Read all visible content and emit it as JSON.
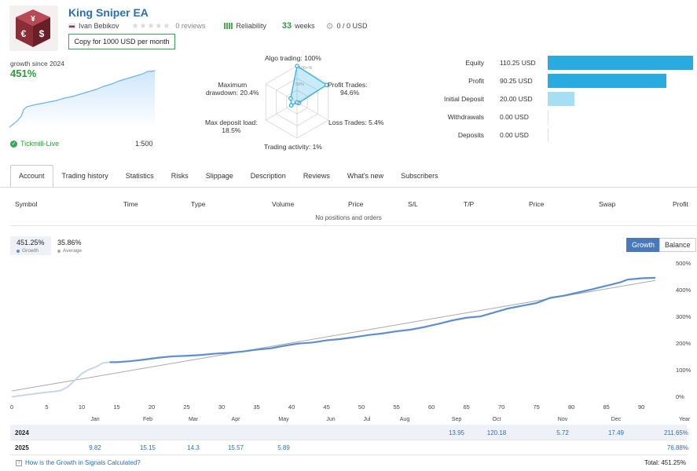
{
  "header": {
    "title": "King Sniper EA",
    "author": "Ivan Bebikov",
    "reviews": "0 reviews",
    "reliability_label": "Reliability",
    "weeks_num": "33",
    "weeks_label": "weeks",
    "copiers": "0 / 0 USD",
    "copy_button": "Copy for 1000 USD per month"
  },
  "growth_widget": {
    "label": "growth since 2024",
    "value": "451%",
    "broker": "Tickmill-Live",
    "leverage": "1:500"
  },
  "radar": {
    "algo": "Algo trading: 100%",
    "profit_trades_1": "Profit Trades:",
    "profit_trades_2": "94.6%",
    "loss_trades": "Loss Trades: 5.4%",
    "activity": "Trading activity: 1%",
    "maxdep_1": "Max deposit load:",
    "maxdep_2": "18.5%",
    "drawdown_1": "Maximum",
    "drawdown_2": "drawdown: 20.4%",
    "ring_100": "100+%",
    "ring_50": "50%",
    "ring_0": "0%",
    "values": {
      "algo": 100,
      "profit": 94.6,
      "loss": 5.4,
      "activity": 1,
      "maxdep": 18.5,
      "drawdown": 20.4
    }
  },
  "balance": {
    "rows": [
      {
        "label": "Equity",
        "value": "110.25 USD",
        "amount": 110.25,
        "color": "#29abe2"
      },
      {
        "label": "Profit",
        "value": "90.25 USD",
        "amount": 90.25,
        "color": "#29abe2"
      },
      {
        "label": "Initial Deposit",
        "value": "20.00 USD",
        "amount": 20.0,
        "color": "#a6def3"
      },
      {
        "label": "Withdrawals",
        "value": "0.00 USD",
        "amount": 0,
        "color": "#a6def3"
      },
      {
        "label": "Deposits",
        "value": "0.00 USD",
        "amount": 0,
        "color": "#a6def3"
      }
    ]
  },
  "tabs": [
    "Account",
    "Trading history",
    "Statistics",
    "Risks",
    "Slippage",
    "Description",
    "Reviews",
    "What's new",
    "Subscribers"
  ],
  "positions": {
    "headers": [
      "Symbol",
      "Time",
      "Type",
      "Volume",
      "Price",
      "S/L",
      "T/P",
      "Price",
      "Swap",
      "Profit"
    ],
    "empty": "No positions and orders"
  },
  "summary": {
    "growth_value": "451.25%",
    "growth_label": "Growth",
    "average_value": "35.86%",
    "average_label": "Average"
  },
  "toggle": {
    "growth": "Growth",
    "balance": "Balance"
  },
  "chart_data": {
    "type": "line",
    "x_ticks": [
      "0",
      "5",
      "10",
      "15",
      "20",
      "25",
      "30",
      "35",
      "40",
      "45",
      "50",
      "55",
      "60",
      "65",
      "70",
      "75",
      "80",
      "85",
      "90"
    ],
    "y_ticks": [
      "0%",
      "100%",
      "200%",
      "300%",
      "400%",
      "500%"
    ],
    "month_labels": [
      "Jan",
      "Feb",
      "Mar",
      "Apr",
      "May",
      "Jun",
      "Jul",
      "Aug",
      "Sep",
      "Oct",
      "Nov",
      "Dec"
    ],
    "year_label": "Year",
    "xlim": [
      0,
      92
    ],
    "ylim": [
      -30,
      530
    ],
    "growth_series": {
      "name": "Growth",
      "color": "#5b8fd1",
      "points": [
        [
          0,
          -2
        ],
        [
          2,
          5
        ],
        [
          4,
          12
        ],
        [
          6,
          18
        ],
        [
          7,
          22
        ],
        [
          8,
          35
        ],
        [
          9,
          60
        ],
        [
          10,
          85
        ],
        [
          11,
          100
        ],
        [
          12,
          110
        ],
        [
          13,
          125
        ],
        [
          14,
          128
        ],
        [
          15,
          128
        ],
        [
          17,
          132
        ],
        [
          19,
          138
        ],
        [
          21,
          145
        ],
        [
          23,
          150
        ],
        [
          25,
          152
        ],
        [
          27,
          155
        ],
        [
          29,
          160
        ],
        [
          31,
          163
        ],
        [
          33,
          168
        ],
        [
          35,
          175
        ],
        [
          37,
          180
        ],
        [
          39,
          190
        ],
        [
          41,
          198
        ],
        [
          43,
          202
        ],
        [
          45,
          210
        ],
        [
          47,
          215
        ],
        [
          49,
          222
        ],
        [
          51,
          230
        ],
        [
          53,
          236
        ],
        [
          55,
          244
        ],
        [
          57,
          250
        ],
        [
          59,
          260
        ],
        [
          61,
          272
        ],
        [
          63,
          285
        ],
        [
          65,
          295
        ],
        [
          67,
          300
        ],
        [
          69,
          315
        ],
        [
          71,
          330
        ],
        [
          73,
          340
        ],
        [
          75,
          350
        ],
        [
          76,
          360
        ],
        [
          77,
          370
        ],
        [
          79,
          378
        ],
        [
          81,
          390
        ],
        [
          83,
          402
        ],
        [
          85,
          415
        ],
        [
          87,
          428
        ],
        [
          88,
          438
        ],
        [
          90,
          443
        ],
        [
          92,
          445
        ]
      ]
    },
    "trend_series": {
      "name": "Average",
      "color": "#aaaaaa",
      "points": [
        [
          0,
          20
        ],
        [
          92,
          435
        ]
      ]
    }
  },
  "yearly": {
    "rows": [
      {
        "year": "2024",
        "values": [
          "",
          "",
          "",
          "",
          "",
          "",
          "",
          "",
          "13.95",
          "120.18",
          "5.72",
          "17.49"
        ],
        "total": "211.65%"
      },
      {
        "year": "2025",
        "values": [
          "9.82",
          "15.15",
          "14.3",
          "15.57",
          "5.89",
          "",
          "",
          "",
          "",
          "",
          "",
          ""
        ],
        "total": "76.88%"
      }
    ]
  },
  "footer": {
    "question": "How is the Growth in Signals Calculated?",
    "total": "Total: 451.25%"
  }
}
